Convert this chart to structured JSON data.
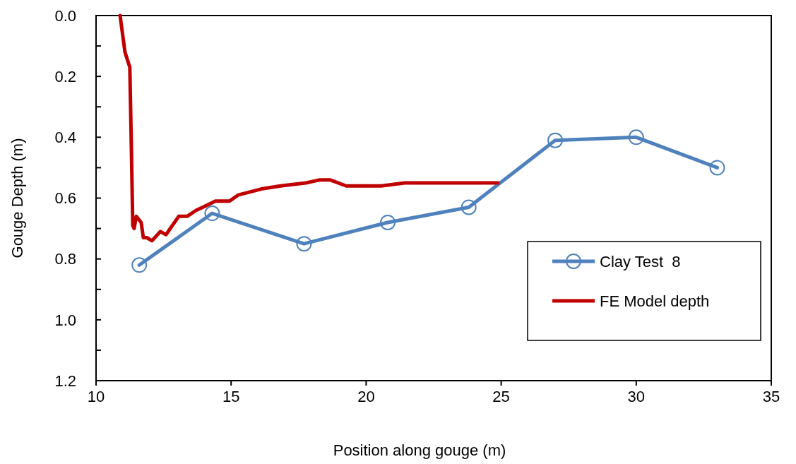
{
  "chart_data": {
    "type": "line",
    "xlabel": "Position along gouge (m)",
    "ylabel": "Gouge Depth (m)",
    "xlim": [
      10,
      35
    ],
    "xticks": [
      10,
      15,
      20,
      25,
      30,
      35
    ],
    "ylim": [
      1.2,
      0
    ],
    "yticks": [
      "0.0",
      {
        "value": 0.1,
        "label": null
      },
      0.2,
      {
        "value": 0.3,
        "label": null
      },
      0.4,
      {
        "value": 0.5,
        "label": null
      },
      0.6,
      {
        "value": 0.7,
        "label": null
      },
      0.8,
      {
        "value": 0.9,
        "label": null
      },
      {
        "value": 1.0,
        "label": "1.0"
      },
      {
        "value": 1.1,
        "label": null
      },
      1.2
    ],
    "grid": false,
    "legend": "right",
    "series": [
      {
        "name": "Clay Test  8",
        "color": "#4f81bd",
        "marker": "circle",
        "x": [
          11.6,
          14.3,
          17.7,
          20.8,
          23.8,
          27.0,
          30.0,
          33.0
        ],
        "values": [
          0.82,
          0.65,
          0.75,
          0.68,
          0.63,
          0.41,
          0.4,
          0.5
        ]
      },
      {
        "name": "FE Model depth",
        "color": "#c00000",
        "marker": "none",
        "x": [
          10.89,
          11.07,
          11.25,
          11.3,
          11.36,
          11.41,
          11.49,
          11.67,
          11.75,
          11.88,
          12.07,
          12.38,
          12.59,
          13.06,
          13.37,
          13.71,
          13.95,
          14.42,
          14.94,
          15.26,
          16.12,
          16.83,
          17.77,
          18.29,
          18.66,
          19.26,
          19.86,
          20.56,
          21.43,
          22.32,
          23.18,
          24.04,
          24.88
        ],
        "values": [
          0,
          0.12,
          0.17,
          0.4,
          0.69,
          0.7,
          0.66,
          0.68,
          0.73,
          0.73,
          0.74,
          0.71,
          0.72,
          0.66,
          0.66,
          0.64,
          0.63,
          0.61,
          0.61,
          0.59,
          0.57,
          0.56,
          0.55,
          0.54,
          0.54,
          0.56,
          0.56,
          0.56,
          0.55,
          0.55,
          0.55,
          0.55,
          0.55
        ]
      }
    ]
  }
}
